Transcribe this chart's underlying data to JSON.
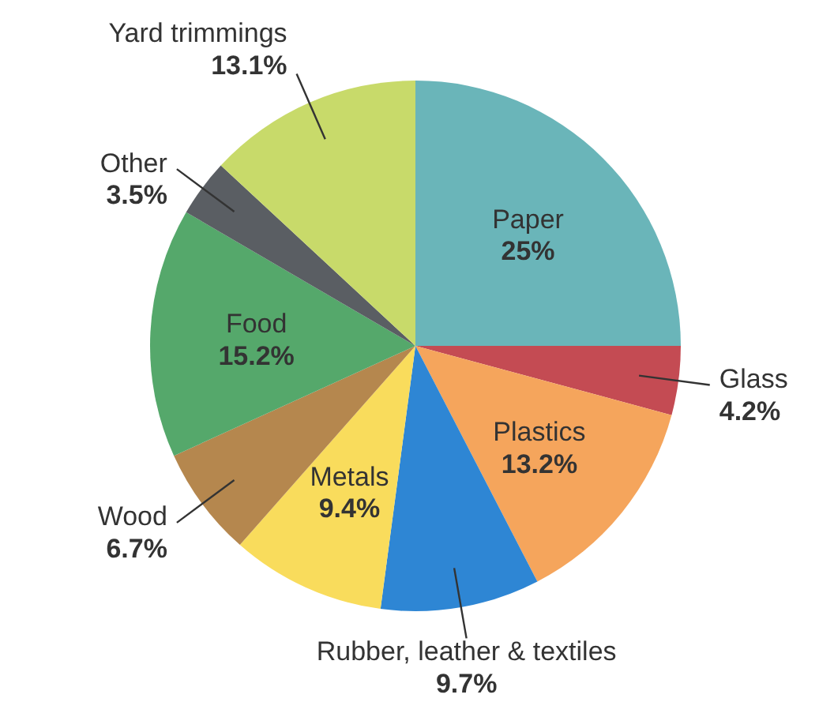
{
  "chart_data": {
    "type": "pie",
    "categories": [
      "Paper",
      "Glass",
      "Plastics",
      "Rubber, leather & textiles",
      "Metals",
      "Wood",
      "Food",
      "Other",
      "Yard trimmings"
    ],
    "values": [
      25,
      4.2,
      13.2,
      9.7,
      9.4,
      6.7,
      15.2,
      3.5,
      13.1
    ],
    "value_labels": [
      "25%",
      "4.2%",
      "13.2%",
      "9.7%",
      "9.4%",
      "6.7%",
      "15.2%",
      "3.5%",
      "13.1%"
    ],
    "colors": [
      "#6ab5b9",
      "#c44b53",
      "#f5a55c",
      "#2e86d4",
      "#f9dc5c",
      "#b5874e",
      "#55a86b",
      "#5a5e63",
      "#c8da6a"
    ]
  }
}
